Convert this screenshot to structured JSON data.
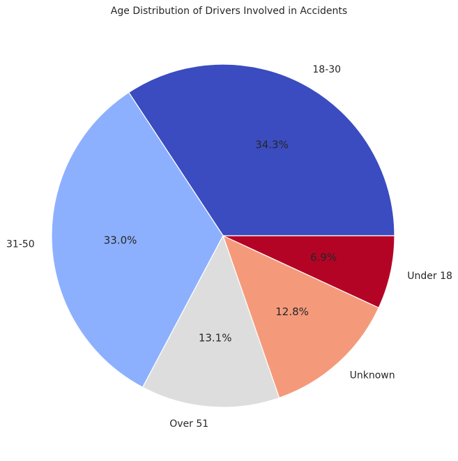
{
  "chart_data": {
    "type": "pie",
    "title": "Age Distribution of Drivers Involved in Accidents",
    "start_angle_deg": 0,
    "direction": "counterclockwise",
    "slices": [
      {
        "label": "18-30",
        "value": 34.3,
        "pct_text": "34.3%",
        "color": "#3b4cc0"
      },
      {
        "label": "31-50",
        "value": 33.0,
        "pct_text": "33.0%",
        "color": "#8db0fe"
      },
      {
        "label": "Over 51",
        "value": 13.1,
        "pct_text": "13.1%",
        "color": "#dddddd"
      },
      {
        "label": "Unknown",
        "value": 12.8,
        "pct_text": "12.8%",
        "color": "#f49a7b"
      },
      {
        "label": "Under 18",
        "value": 6.9,
        "pct_text": "6.9%",
        "color": "#b40426"
      }
    ]
  }
}
